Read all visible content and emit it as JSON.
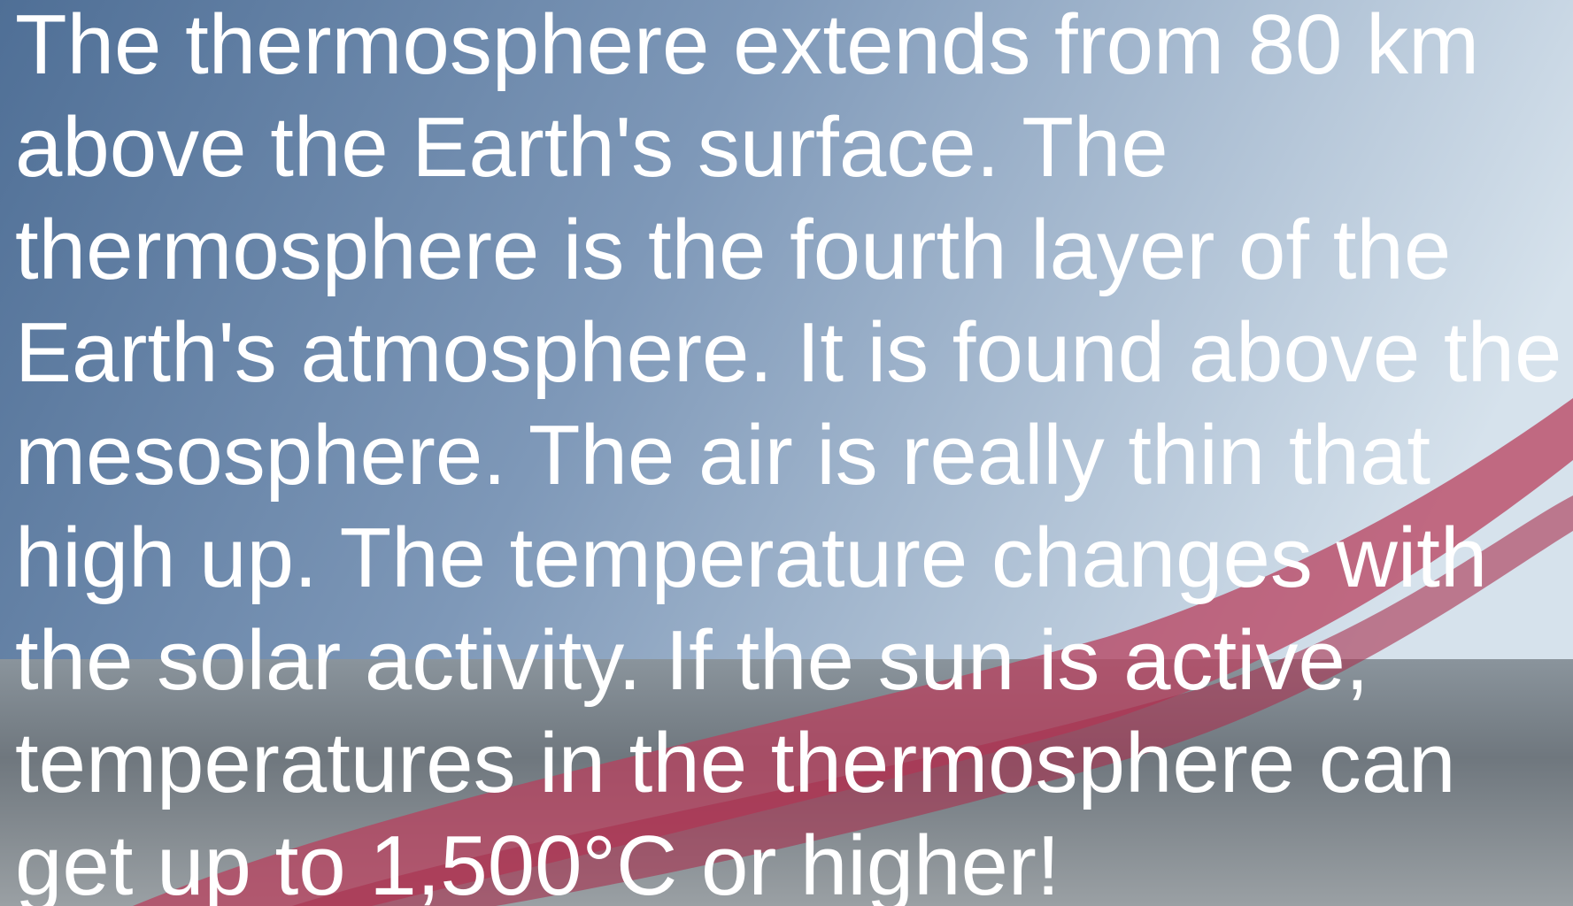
{
  "text": {
    "lines": [
      "The thermosphere extends from 80 km",
      "above the Earth's surface. The",
      "thermosphere is the fourth layer of the",
      "Earth's atmosphere. It is found above the",
      "mesosphere. The air is really thin that",
      "high up. The temperature changes with",
      "the solar activity. If the sun is active,",
      "temperatures in the thermosphere can",
      "get up to 1,500°C or higher!"
    ]
  }
}
